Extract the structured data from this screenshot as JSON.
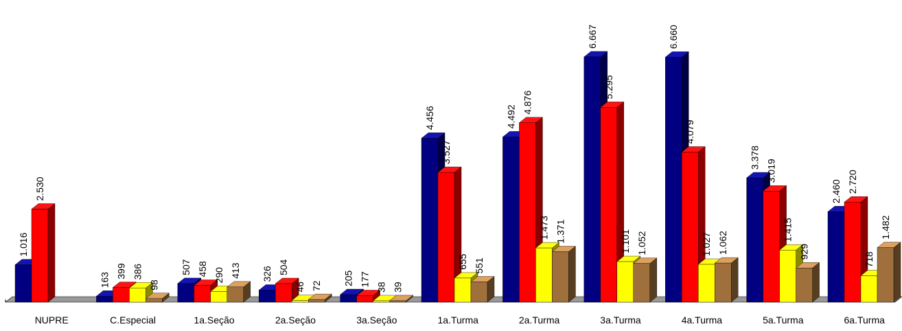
{
  "chart_data": {
    "type": "bar3d",
    "categories": [
      "NUPRE",
      "C.Especial",
      "1a.Seção",
      "2a.Seção",
      "3a.Seção",
      "1a.Turma",
      "2a.Turma",
      "3a.Turma",
      "4a.Turma",
      "5a.Turma",
      "6a.Turma"
    ],
    "series": [
      {
        "color": "#000080",
        "values": [
          1016,
          163,
          507,
          326,
          205,
          4456,
          4492,
          6667,
          6660,
          3378,
          2460
        ],
        "value_labels": [
          "1.016",
          "163",
          "507",
          "326",
          "205",
          "4.456",
          "4.492",
          "6.667",
          "6.660",
          "3.378",
          "2.460"
        ]
      },
      {
        "color": "#ff0000",
        "values": [
          2530,
          399,
          458,
          504,
          177,
          3527,
          4876,
          5295,
          4079,
          3019,
          2720
        ],
        "value_labels": [
          "2.530",
          "399",
          "458",
          "504",
          "177",
          "3.527",
          "4.876",
          "5.295",
          "4.079",
          "3.019",
          "2.720"
        ]
      },
      {
        "color": "#ffff00",
        "values": [
          null,
          386,
          290,
          46,
          38,
          655,
          1473,
          1101,
          1027,
          1415,
          718
        ],
        "value_labels": [
          null,
          "386",
          "290",
          "46",
          "38",
          "655",
          "1.473",
          "1.101",
          "1.027",
          "1.415",
          "718"
        ]
      },
      {
        "color": "#a0703c",
        "values": [
          null,
          98,
          413,
          72,
          39,
          551,
          1371,
          1052,
          1062,
          929,
          1482
        ],
        "value_labels": [
          null,
          "98",
          "413",
          "72",
          "39",
          "551",
          "1.371",
          "1.052",
          "1.062",
          "929",
          "1.482"
        ]
      }
    ],
    "ylim": [
      0,
      7000
    ]
  }
}
